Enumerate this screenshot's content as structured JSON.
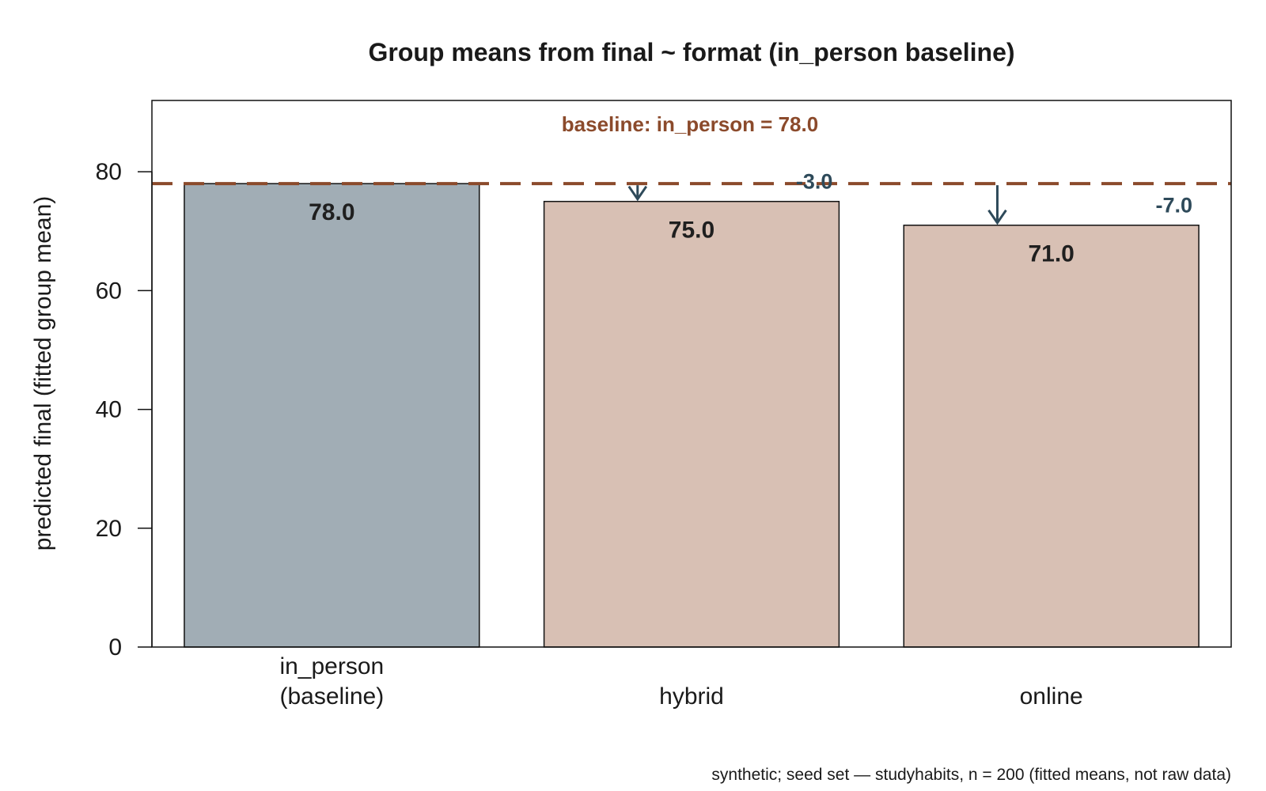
{
  "chart_data": {
    "type": "bar",
    "title": "Group means from final ~ format (in_person baseline)",
    "ylabel": "predicted final (fitted group mean)",
    "xlabel": "",
    "ylim": [
      0,
      92
    ],
    "yticks": [
      0,
      20,
      40,
      60,
      80
    ],
    "categories": [
      {
        "label_lines": [
          "in_person",
          "(baseline)"
        ]
      },
      {
        "label_lines": [
          "hybrid"
        ]
      },
      {
        "label_lines": [
          "online"
        ]
      }
    ],
    "values": [
      78.0,
      75.0,
      71.0
    ],
    "value_labels": [
      "78.0",
      "75.0",
      "71.0"
    ],
    "differences": [
      null,
      -3.0,
      -7.0
    ],
    "difference_labels": [
      "",
      "-3.0",
      "-7.0"
    ],
    "baseline": {
      "value": 78.0,
      "label": "baseline: in_person = 78.0",
      "style": "dashed"
    },
    "colors": {
      "baseline_bar": "#a1adb5",
      "other_bars": "#d8c0b4",
      "baseline_line": "#8b4a2b",
      "arrow": "#2e4a5a",
      "bar_border": "#111111"
    },
    "grid": false,
    "legend": "none"
  },
  "caption": "synthetic; seed set — studyhabits, n = 200 (fitted means, not raw data)"
}
